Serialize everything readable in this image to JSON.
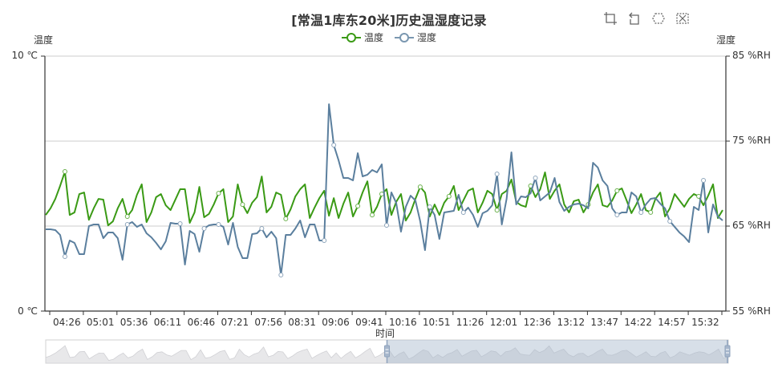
{
  "chart_data": {
    "type": "line",
    "title": "[常温1库东20米]历史温湿度记录",
    "xlabel": "时间",
    "ylabel_left": "温度",
    "ylabel_right": "湿度",
    "legend": [
      "温度",
      "湿度"
    ],
    "legend_position": "top-center",
    "grid": true,
    "x_tick_labels": [
      "04:26",
      "05:01",
      "05:36",
      "06:11",
      "06:46",
      "07:21",
      "07:56",
      "08:31",
      "09:06",
      "09:41",
      "10:16",
      "10:51",
      "11:26",
      "12:01",
      "12:36",
      "13:12",
      "13:47",
      "14:22",
      "14:57",
      "15:32"
    ],
    "y_left": {
      "min": 0,
      "max": 10,
      "unit": "℃",
      "ticks": [
        "0 ℃",
        "10 ℃"
      ]
    },
    "y_right": {
      "min": 55,
      "max": 85,
      "unit": "%RH",
      "ticks": [
        "55 %RH",
        "65 %RH",
        "75 %RH",
        "85 %RH"
      ]
    },
    "series": [
      {
        "name": "温度",
        "axis": "left",
        "color": "#3a9a15",
        "values": [
          3.77,
          4.03,
          4.4,
          4.91,
          5.47,
          3.77,
          3.87,
          4.59,
          4.65,
          3.58,
          4.03,
          4.4,
          4.37,
          3.36,
          3.52,
          4.03,
          4.4,
          3.71,
          3.96,
          4.56,
          4.97,
          3.49,
          3.87,
          4.47,
          4.59,
          4.15,
          3.96,
          4.37,
          4.78,
          4.78,
          3.46,
          3.87,
          4.87,
          3.68,
          3.81,
          4.18,
          4.62,
          4.78,
          3.49,
          3.71,
          4.97,
          4.18,
          3.84,
          4.25,
          4.47,
          5.28,
          3.87,
          4.09,
          4.65,
          4.56,
          3.62,
          3.99,
          4.5,
          4.78,
          4.97,
          3.65,
          4.06,
          4.43,
          4.72,
          3.74,
          4.43,
          3.65,
          4.21,
          4.65,
          3.71,
          4.12,
          4.65,
          5.09,
          3.77,
          4.09,
          4.59,
          4.78,
          3.77,
          4.28,
          4.59,
          3.55,
          3.87,
          4.4,
          4.87,
          4.65,
          3.71,
          4.18,
          3.77,
          4.25,
          4.5,
          4.91,
          3.96,
          4.34,
          4.72,
          4.81,
          3.87,
          4.25,
          4.72,
          4.59,
          3.96,
          4.59,
          4.72,
          5.16,
          4.28,
          4.15,
          4.09,
          4.91,
          4.47,
          4.78,
          5.44,
          4.4,
          4.72,
          4.97,
          4.18,
          3.87,
          4.31,
          4.37,
          3.87,
          4.18,
          4.65,
          4.97,
          4.15,
          4.09,
          4.34,
          4.72,
          4.81,
          4.34,
          3.84,
          4.18,
          4.59,
          3.96,
          3.87,
          4.4,
          4.65,
          3.71,
          4.03,
          4.59,
          4.34,
          4.09,
          4.4,
          4.59,
          4.5,
          4.15,
          4.53,
          4.97,
          3.65,
          3.96
        ],
        "marker_points": [
          4,
          17,
          36,
          41,
          50,
          65,
          68,
          70,
          78,
          84,
          94,
          101,
          113,
          119,
          126,
          136
        ]
      },
      {
        "name": "湿度",
        "axis": "right",
        "color": "#5b7f9e",
        "values": [
          64.62,
          64.62,
          64.53,
          63.96,
          61.42,
          63.3,
          63.02,
          61.7,
          61.7,
          65.0,
          65.19,
          65.19,
          63.58,
          64.25,
          64.25,
          63.58,
          61.04,
          65.19,
          65.47,
          64.91,
          65.19,
          64.15,
          63.68,
          63.02,
          62.26,
          63.21,
          65.38,
          65.28,
          65.28,
          60.47,
          64.43,
          64.06,
          61.98,
          64.72,
          65.09,
          65.19,
          65.19,
          64.91,
          62.83,
          65.38,
          62.55,
          61.23,
          61.23,
          64.06,
          64.15,
          64.72,
          63.68,
          64.34,
          63.58,
          59.25,
          63.96,
          63.96,
          64.72,
          65.66,
          63.68,
          65.19,
          65.19,
          63.3,
          63.3,
          79.34,
          74.53,
          72.74,
          70.66,
          70.66,
          70.38,
          73.58,
          70.85,
          71.04,
          71.6,
          71.32,
          72.26,
          65.09,
          68.96,
          67.74,
          64.34,
          67.26,
          68.58,
          68.02,
          65.57,
          62.17,
          67.26,
          66.32,
          63.49,
          66.6,
          66.7,
          66.79,
          68.68,
          66.6,
          67.17,
          66.32,
          64.91,
          66.51,
          66.79,
          67.45,
          71.13,
          65.19,
          68.21,
          73.68,
          67.55,
          68.49,
          68.4,
          68.87,
          70.66,
          68.02,
          68.49,
          68.96,
          70.66,
          67.83,
          66.79,
          67.26,
          67.55,
          67.64,
          67.45,
          67.08,
          72.45,
          71.89,
          70.38,
          69.72,
          67.08,
          66.32,
          66.6,
          66.6,
          68.96,
          68.49,
          66.6,
          67.55,
          68.21,
          68.3,
          67.64,
          67.08,
          65.57,
          64.91,
          64.25,
          63.77,
          63.11,
          67.26,
          66.89,
          70.38,
          64.25,
          67.55,
          66.13,
          65.66
        ],
        "marker_points": [
          4,
          17,
          28,
          33,
          36,
          45,
          49,
          58,
          60,
          71,
          80,
          87,
          94,
          102,
          119,
          124,
          130,
          137
        ]
      }
    ]
  },
  "toolbox": {
    "items": [
      {
        "name": "zoom-icon",
        "label": "区域缩放"
      },
      {
        "name": "zoom-reset-icon",
        "label": "区域缩放还原"
      },
      {
        "name": "restore-icon",
        "label": "还原"
      },
      {
        "name": "exit-icon",
        "label": "关闭"
      }
    ]
  },
  "datazoom": {
    "start_percent": 50,
    "end_percent": 100
  }
}
